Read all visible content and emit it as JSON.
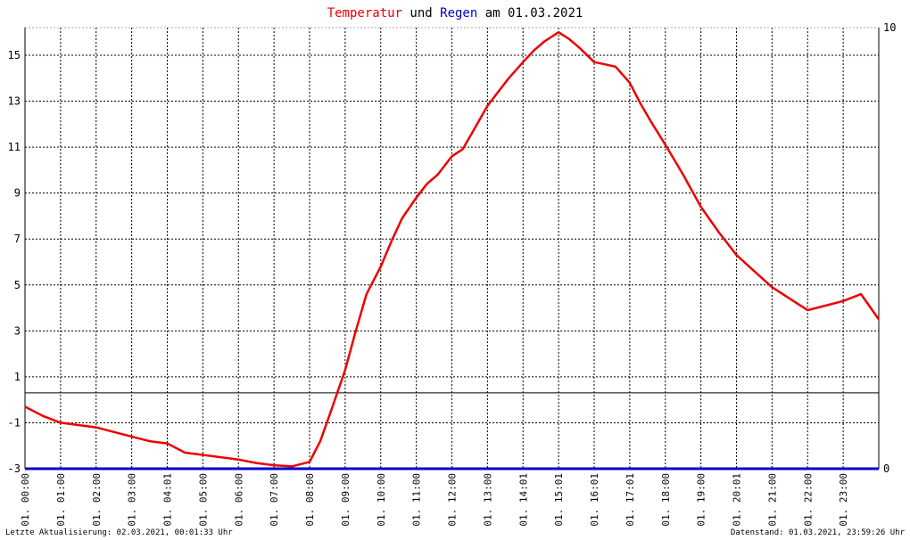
{
  "chart_data": {
    "type": "line",
    "title": {
      "part1": "Temperatur",
      "part2": " und ",
      "part3": "Regen",
      "part4": " am 01.03.2021"
    },
    "colors": {
      "temperature": "#ee0000",
      "rain": "#0000cc",
      "title_text": "#000000"
    },
    "grid": true,
    "x_ticks": [
      "01. 00:00",
      "01. 01:00",
      "01. 02:00",
      "01. 03:00",
      "01. 04:01",
      "01. 05:00",
      "01. 06:00",
      "01. 07:00",
      "01. 08:00",
      "01. 09:00",
      "01. 10:00",
      "01. 11:00",
      "01. 12:00",
      "01. 13:00",
      "01. 14:01",
      "01. 15:01",
      "01. 16:01",
      "01. 17:01",
      "01. 18:00",
      "01. 19:00",
      "01. 20:01",
      "01. 21:00",
      "01. 22:00",
      "01. 23:00"
    ],
    "x_tick_hours": [
      0,
      1,
      2,
      3,
      4,
      5,
      6,
      7,
      8,
      9,
      10,
      11,
      12,
      13,
      14,
      15,
      16,
      17,
      18,
      19,
      20,
      21,
      22,
      23
    ],
    "x_range_hours": [
      0,
      24
    ],
    "y_left": {
      "ylim": [
        -3,
        16.2
      ],
      "ticks": [
        15,
        13,
        11,
        9,
        7,
        5,
        3,
        1,
        -1,
        -3
      ]
    },
    "y_right": {
      "ylim": [
        0,
        10
      ],
      "ticks": [
        10,
        0
      ]
    },
    "reference_line_y": 0.3,
    "series": [
      {
        "key": "temperature",
        "axis": "left",
        "x": [
          0,
          0.5,
          1,
          1.5,
          2,
          2.5,
          3,
          3.5,
          4,
          4.5,
          5,
          5.5,
          6,
          6.5,
          7,
          7.5,
          8,
          8.3,
          8.6,
          9,
          9.3,
          9.6,
          10,
          10.3,
          10.6,
          11,
          11.3,
          11.6,
          12,
          12.3,
          12.6,
          13,
          13.3,
          13.6,
          14,
          14.3,
          14.6,
          15,
          15.3,
          15.6,
          16,
          16.3,
          16.6,
          17,
          17.3,
          17.6,
          18,
          18.5,
          19,
          19.5,
          20,
          20.5,
          21,
          21.5,
          22,
          22.5,
          23,
          23.5,
          24
        ],
        "values": [
          -0.3,
          -0.7,
          -1.0,
          -1.1,
          -1.2,
          -1.4,
          -1.6,
          -1.8,
          -1.9,
          -2.3,
          -2.4,
          -2.5,
          -2.6,
          -2.75,
          -2.85,
          -2.9,
          -2.7,
          -1.8,
          -0.5,
          1.3,
          3.0,
          4.6,
          5.8,
          6.9,
          7.9,
          8.8,
          9.4,
          9.8,
          10.6,
          10.9,
          11.7,
          12.8,
          13.4,
          14.0,
          14.7,
          15.2,
          15.6,
          16.0,
          15.7,
          15.3,
          14.7,
          14.6,
          14.5,
          13.8,
          12.9,
          12.1,
          11.1,
          9.8,
          8.4,
          7.3,
          6.3,
          5.6,
          4.9,
          4.4,
          3.9,
          4.1,
          4.3,
          4.6,
          3.5
        ]
      },
      {
        "key": "rain",
        "axis": "right",
        "x": [
          0,
          24
        ],
        "values": [
          0,
          0
        ]
      }
    ]
  },
  "footer": {
    "left": "Letzte Aktualisierung: 02.03.2021, 00:01:33 Uhr",
    "right": "Datenstand: 01.03.2021, 23:59:26 Uhr"
  }
}
